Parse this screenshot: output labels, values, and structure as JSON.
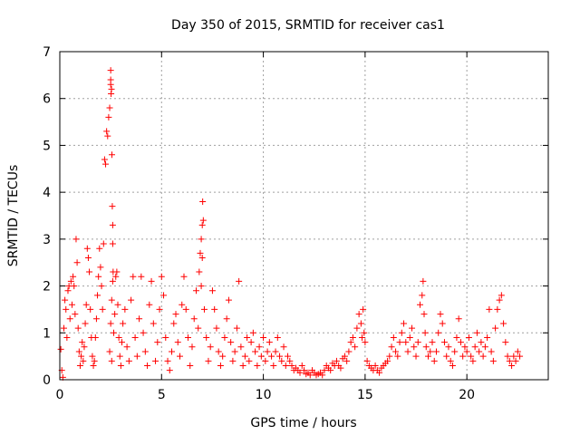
{
  "chart_data": {
    "type": "scatter",
    "title": "Day 350 of 2015, SRMTID for receiver cas1",
    "xlabel": "GPS time / hours",
    "ylabel": "SRMTID / TECUs",
    "xlim": [
      0,
      24
    ],
    "ylim": [
      0,
      7
    ],
    "xticks": [
      0,
      5,
      10,
      15,
      20
    ],
    "xtick_labels": [
      "0",
      "5",
      "10",
      "15",
      "20"
    ],
    "yticks": [
      0,
      1,
      2,
      3,
      4,
      5,
      6,
      7
    ],
    "ytick_labels": [
      "0",
      "1",
      "2",
      "3",
      "4",
      "5",
      "6",
      "7"
    ],
    "grid": true,
    "marker": "plus",
    "series_color": "#ff0000",
    "series": [
      {
        "name": "SRMTID",
        "x": [
          0.05,
          0.1,
          0.15,
          0.2,
          0.25,
          0.3,
          0.35,
          0.4,
          0.45,
          0.5,
          0.55,
          0.6,
          0.65,
          0.7,
          0.75,
          0.8,
          0.85,
          0.9,
          0.95,
          1.0,
          1.05,
          1.1,
          1.15,
          1.2,
          1.25,
          1.3,
          1.35,
          1.4,
          1.45,
          1.5,
          1.55,
          1.6,
          1.65,
          1.7,
          1.75,
          1.8,
          1.85,
          1.9,
          1.95,
          2.0,
          2.05,
          2.1,
          2.15,
          2.2,
          2.25,
          2.3,
          2.35,
          2.4,
          2.45,
          2.5,
          2.5,
          2.5,
          2.52,
          2.54,
          2.56,
          2.58,
          2.6,
          2.6,
          2.62,
          2.6,
          2.55,
          2.5,
          2.45,
          2.55,
          2.65,
          2.7,
          2.75,
          2.8,
          2.85,
          2.9,
          2.95,
          3.0,
          3.05,
          3.1,
          3.2,
          3.3,
          3.4,
          3.5,
          3.6,
          3.7,
          3.8,
          3.9,
          4.0,
          4.1,
          4.2,
          4.3,
          4.4,
          4.5,
          4.6,
          4.7,
          4.8,
          4.9,
          5.0,
          5.1,
          5.2,
          5.3,
          5.4,
          5.5,
          5.6,
          5.7,
          5.8,
          5.9,
          6.0,
          6.1,
          6.2,
          6.3,
          6.4,
          6.5,
          6.6,
          6.7,
          6.8,
          6.85,
          6.9,
          6.95,
          7.0,
          7.02,
          7.05,
          7.0,
          6.95,
          7.1,
          7.2,
          7.3,
          7.4,
          7.5,
          7.6,
          7.7,
          7.8,
          7.9,
          8.0,
          8.1,
          8.2,
          8.3,
          8.4,
          8.5,
          8.6,
          8.7,
          8.8,
          8.9,
          9.0,
          9.1,
          9.2,
          9.3,
          9.4,
          9.5,
          9.6,
          9.7,
          9.8,
          9.9,
          10.0,
          10.1,
          10.2,
          10.3,
          10.4,
          10.5,
          10.6,
          10.7,
          10.8,
          10.9,
          11.0,
          11.1,
          11.2,
          11.3,
          11.4,
          11.5,
          11.6,
          11.7,
          11.8,
          11.9,
          12.0,
          12.1,
          12.2,
          12.3,
          12.4,
          12.5,
          12.6,
          12.7,
          12.8,
          12.9,
          13.0,
          13.1,
          13.2,
          13.3,
          13.4,
          13.5,
          13.6,
          13.7,
          13.8,
          13.9,
          14.0,
          14.1,
          14.2,
          14.3,
          14.4,
          14.5,
          14.6,
          14.7,
          14.8,
          14.85,
          14.9,
          14.95,
          15.0,
          15.1,
          15.2,
          15.3,
          15.4,
          15.5,
          15.6,
          15.7,
          15.8,
          15.9,
          16.0,
          16.1,
          16.2,
          16.3,
          16.4,
          16.5,
          16.6,
          16.7,
          16.8,
          16.9,
          17.0,
          17.1,
          17.2,
          17.3,
          17.4,
          17.5,
          17.6,
          17.7,
          17.8,
          17.85,
          17.9,
          17.95,
          18.0,
          18.1,
          18.2,
          18.3,
          18.4,
          18.5,
          18.6,
          18.7,
          18.8,
          18.9,
          19.0,
          19.1,
          19.2,
          19.3,
          19.4,
          19.5,
          19.6,
          19.7,
          19.8,
          19.9,
          20.0,
          20.1,
          20.2,
          20.3,
          20.4,
          20.5,
          20.6,
          20.7,
          20.8,
          20.9,
          21.0,
          21.1,
          21.2,
          21.3,
          21.4,
          21.5,
          21.6,
          21.7,
          21.8,
          21.9,
          22.0,
          22.1,
          22.2,
          22.3,
          22.4,
          22.5,
          22.6
        ],
        "y": [
          0.65,
          0.2,
          0.05,
          1.1,
          1.7,
          1.5,
          0.9,
          1.9,
          2.0,
          1.3,
          2.1,
          1.6,
          2.2,
          2.0,
          1.4,
          3.0,
          2.5,
          1.1,
          0.6,
          0.3,
          0.5,
          0.8,
          0.4,
          0.7,
          1.2,
          1.6,
          2.8,
          2.6,
          2.3,
          1.5,
          0.9,
          0.5,
          0.3,
          0.4,
          0.9,
          1.3,
          1.8,
          2.2,
          2.8,
          2.4,
          2.0,
          1.5,
          2.9,
          4.7,
          4.6,
          5.3,
          5.2,
          5.6,
          5.8,
          6.3,
          6.4,
          6.6,
          6.1,
          6.2,
          4.8,
          3.7,
          3.3,
          2.9,
          2.3,
          2.1,
          1.7,
          1.2,
          0.6,
          0.4,
          1.0,
          1.4,
          2.2,
          2.3,
          1.6,
          0.9,
          0.5,
          0.3,
          0.8,
          1.2,
          1.5,
          0.7,
          0.4,
          1.7,
          2.2,
          0.9,
          0.5,
          1.3,
          2.2,
          1.0,
          0.6,
          0.3,
          1.6,
          2.1,
          1.2,
          0.4,
          0.8,
          1.5,
          2.2,
          1.8,
          0.9,
          0.4,
          0.2,
          0.6,
          1.2,
          1.4,
          0.8,
          0.5,
          1.6,
          2.2,
          1.5,
          0.9,
          0.3,
          0.7,
          1.3,
          1.9,
          1.1,
          2.3,
          2.7,
          3.0,
          3.3,
          3.8,
          3.4,
          2.6,
          2.0,
          1.5,
          0.9,
          0.4,
          0.7,
          1.9,
          1.5,
          1.1,
          0.6,
          0.3,
          0.5,
          0.9,
          1.3,
          1.7,
          0.8,
          0.4,
          0.6,
          1.1,
          2.1,
          0.7,
          0.3,
          0.5,
          0.9,
          0.4,
          0.8,
          1.0,
          0.6,
          0.3,
          0.7,
          0.5,
          0.9,
          0.4,
          0.6,
          0.8,
          0.5,
          0.3,
          0.6,
          0.9,
          0.5,
          0.4,
          0.7,
          0.3,
          0.5,
          0.4,
          0.3,
          0.2,
          0.25,
          0.2,
          0.15,
          0.3,
          0.2,
          0.12,
          0.15,
          0.1,
          0.2,
          0.15,
          0.1,
          0.12,
          0.15,
          0.1,
          0.2,
          0.3,
          0.25,
          0.2,
          0.35,
          0.3,
          0.4,
          0.3,
          0.25,
          0.45,
          0.5,
          0.4,
          0.6,
          0.8,
          0.9,
          0.7,
          1.1,
          1.4,
          1.2,
          0.9,
          1.5,
          1.0,
          0.8,
          0.4,
          0.3,
          0.25,
          0.2,
          0.3,
          0.2,
          0.15,
          0.25,
          0.3,
          0.35,
          0.4,
          0.5,
          0.7,
          0.9,
          0.6,
          0.5,
          0.8,
          1.0,
          1.2,
          0.8,
          0.6,
          0.9,
          1.1,
          0.7,
          0.5,
          0.8,
          1.6,
          1.8,
          2.1,
          1.4,
          1.0,
          0.7,
          0.5,
          0.6,
          0.8,
          0.4,
          0.6,
          1.0,
          1.4,
          1.2,
          0.8,
          0.5,
          0.7,
          0.4,
          0.3,
          0.6,
          0.9,
          1.3,
          0.8,
          0.5,
          0.7,
          0.6,
          0.9,
          0.5,
          0.4,
          0.7,
          1.0,
          0.6,
          0.8,
          0.5,
          0.7,
          0.9,
          1.5,
          0.6,
          0.4,
          1.1,
          1.5,
          1.7,
          1.8,
          1.2,
          0.8,
          0.5,
          0.4,
          0.3,
          0.5,
          0.4,
          0.6,
          0.5
        ]
      }
    ]
  }
}
